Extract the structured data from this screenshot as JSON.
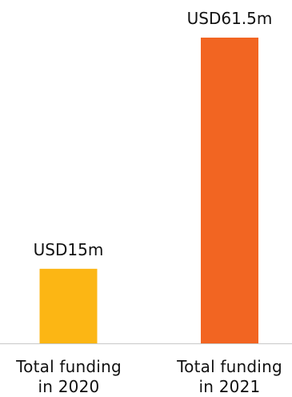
{
  "chart_data": {
    "type": "bar",
    "categories": [
      "Total funding in 2020",
      "Total funding in 2021"
    ],
    "category_lines": [
      [
        "Total funding",
        "in 2020"
      ],
      [
        "Total funding",
        "in 2021"
      ]
    ],
    "values": [
      15,
      61.5
    ],
    "data_labels": [
      "USD15m",
      "USD61.5m"
    ],
    "colors": [
      "#FCB614",
      "#F26522"
    ],
    "unit": "USD million",
    "ylim": [
      0,
      61.5
    ],
    "grid": false,
    "title": "",
    "xlabel": "",
    "ylabel": ""
  },
  "colors": {
    "axis": "#c8c8c8",
    "text": "#111111"
  }
}
